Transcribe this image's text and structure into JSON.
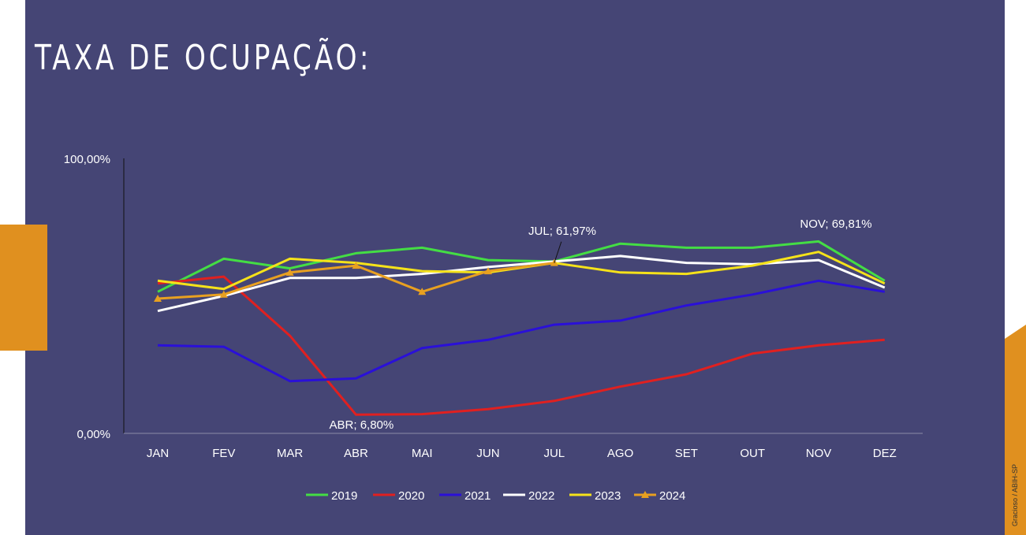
{
  "page": {
    "title": "TAXA DE OCUPAÇÃO:",
    "credit": "Gracioso / ABIH-SP",
    "colors": {
      "background": "#454575",
      "accent": "#e0901f"
    }
  },
  "chart_data": {
    "type": "line",
    "title": "",
    "xlabel": "",
    "ylabel": "",
    "categories": [
      "JAN",
      "FEV",
      "MAR",
      "ABR",
      "MAI",
      "JUN",
      "JUL",
      "AGO",
      "SET",
      "OUT",
      "NOV",
      "DEZ"
    ],
    "ylim": [
      0,
      100
    ],
    "ytick_labels": [
      "0,00%",
      "100,00%"
    ],
    "grid": false,
    "legend_position": "bottom",
    "series": [
      {
        "name": "2019",
        "color": "#44dd44",
        "marker": "none",
        "values": [
          51.5,
          63.5,
          60.0,
          65.5,
          67.5,
          63.0,
          62.5,
          69.0,
          67.5,
          67.5,
          69.81,
          55.5
        ]
      },
      {
        "name": "2020",
        "color": "#e02020",
        "marker": "none",
        "values": [
          54.5,
          57.0,
          35.5,
          6.8,
          7.0,
          8.8,
          11.8,
          17.0,
          21.5,
          29.0,
          32.0,
          34.0
        ]
      },
      {
        "name": "2021",
        "color": "#2a10d8",
        "marker": "none",
        "values": [
          32.0,
          31.5,
          19.0,
          20.0,
          31.0,
          34.0,
          39.5,
          41.0,
          46.5,
          50.5,
          55.5,
          51.5
        ]
      },
      {
        "name": "2022",
        "color": "#ffffff",
        "marker": "none",
        "values": [
          44.5,
          50.0,
          56.5,
          56.5,
          58.0,
          60.5,
          62.5,
          64.5,
          62.0,
          61.5,
          63.0,
          53.0
        ]
      },
      {
        "name": "2023",
        "color": "#f5e21a",
        "marker": "none",
        "values": [
          55.5,
          52.5,
          63.5,
          62.0,
          59.0,
          58.5,
          61.97,
          58.5,
          58.0,
          61.0,
          66.0,
          54.5
        ]
      },
      {
        "name": "2024",
        "color": "#e8a020",
        "marker": "triangle",
        "values": [
          49.0,
          50.5,
          58.5,
          61.0,
          51.5,
          59.0,
          62.0,
          null,
          null,
          null,
          null,
          null
        ]
      }
    ],
    "annotations": [
      {
        "text": "JUL; 61,97%",
        "category": "JUL",
        "value": 61.97
      },
      {
        "text": "NOV; 69,81%",
        "category": "NOV",
        "value": 69.81
      },
      {
        "text": "ABR; 6,80%",
        "category": "ABR",
        "value": 6.8
      }
    ]
  }
}
